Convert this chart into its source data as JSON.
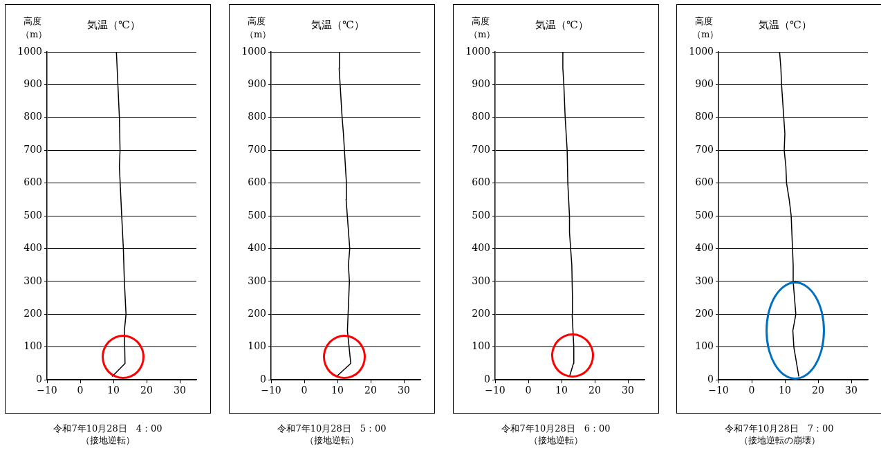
{
  "chart_data": [
    {
      "type": "line",
      "title": "令和7年10月28日　4：00",
      "subtitle": "（接地逆転）",
      "xlabel": "気温（℃）",
      "ylabel": "高度（m）",
      "legend": false,
      "marker": "none",
      "grid": "y",
      "xlim": [
        -10,
        35
      ],
      "xticks": [
        -10,
        0,
        10,
        20,
        30
      ],
      "ylim": [
        0,
        1000
      ],
      "yticks": [
        0,
        100,
        200,
        300,
        400,
        500,
        600,
        700,
        800,
        900,
        1000
      ],
      "series": [
        {
          "color": "#000000",
          "x": [
            9.6,
            13.5,
            13.3,
            13.8,
            13.3,
            13.0,
            12.5,
            11.8,
            12.0,
            11.8,
            10.9
          ],
          "values": [
            10,
            50,
            150,
            200,
            300,
            400,
            500,
            650,
            700,
            800,
            1000
          ]
        }
      ]
    },
    {
      "type": "line",
      "title": "令和7年10月28日　5：00",
      "subtitle": "（接地逆転）",
      "xlabel": "気温（℃）",
      "ylabel": "高度（m）",
      "legend": false,
      "marker": "none",
      "grid": "y",
      "xlim": [
        -10,
        35
      ],
      "xticks": [
        -10,
        0,
        10,
        20,
        30
      ],
      "ylim": [
        0,
        1000
      ],
      "yticks": [
        0,
        100,
        200,
        300,
        400,
        500,
        600,
        700,
        800,
        900,
        1000
      ],
      "series": [
        {
          "color": "#000000",
          "x": [
            9.7,
            14.0,
            13.0,
            13.4,
            13.6,
            13.3,
            13.7,
            12.6,
            12.7,
            11.8,
            11.4,
            10.8,
            10.5,
            10.6
          ],
          "values": [
            10,
            50,
            150,
            250,
            300,
            350,
            400,
            550,
            600,
            750,
            800,
            900,
            950,
            1000
          ]
        }
      ]
    },
    {
      "type": "line",
      "title": "令和7年10月28日　6：00",
      "subtitle": "（接地逆転）",
      "xlabel": "気温（℃）",
      "ylabel": "高度（m）",
      "legend": false,
      "marker": "none",
      "grid": "y",
      "xlim": [
        -10,
        35
      ],
      "xticks": [
        -10,
        0,
        10,
        20,
        30
      ],
      "ylim": [
        0,
        1000
      ],
      "yticks": [
        0,
        100,
        200,
        300,
        400,
        500,
        600,
        700,
        800,
        900,
        1000
      ],
      "series": [
        {
          "color": "#000000",
          "x": [
            12.4,
            13.6,
            13.7,
            13.2,
            13.3,
            13.1,
            12.4,
            12.4,
            11.9,
            11.7,
            11.1,
            10.7,
            10.4,
            10.4
          ],
          "values": [
            10,
            50,
            100,
            200,
            250,
            350,
            450,
            500,
            600,
            700,
            800,
            900,
            950,
            1000
          ]
        }
      ]
    },
    {
      "type": "line",
      "title": "令和7年10月28日　7：00",
      "subtitle": "（接地逆転の崩壊）",
      "xlabel": "気温（℃）",
      "ylabel": "高度（m）",
      "legend": false,
      "marker": "none",
      "grid": "y",
      "xlim": [
        -10,
        35
      ],
      "xticks": [
        -10,
        0,
        10,
        20,
        30
      ],
      "ylim": [
        0,
        1000
      ],
      "yticks": [
        0,
        100,
        200,
        300,
        400,
        500,
        600,
        700,
        800,
        900,
        1000
      ],
      "series": [
        {
          "color": "#000000",
          "x": [
            14.2,
            12.7,
            12.4,
            13.3,
            12.5,
            12.5,
            11.9,
            11.3,
            10.5,
            10.3,
            9.8,
            10.0,
            9.0,
            8.8,
            8.4
          ],
          "values": [
            10,
            100,
            150,
            200,
            300,
            350,
            500,
            550,
            600,
            650,
            700,
            750,
            900,
            950,
            1000
          ]
        }
      ]
    }
  ]
}
